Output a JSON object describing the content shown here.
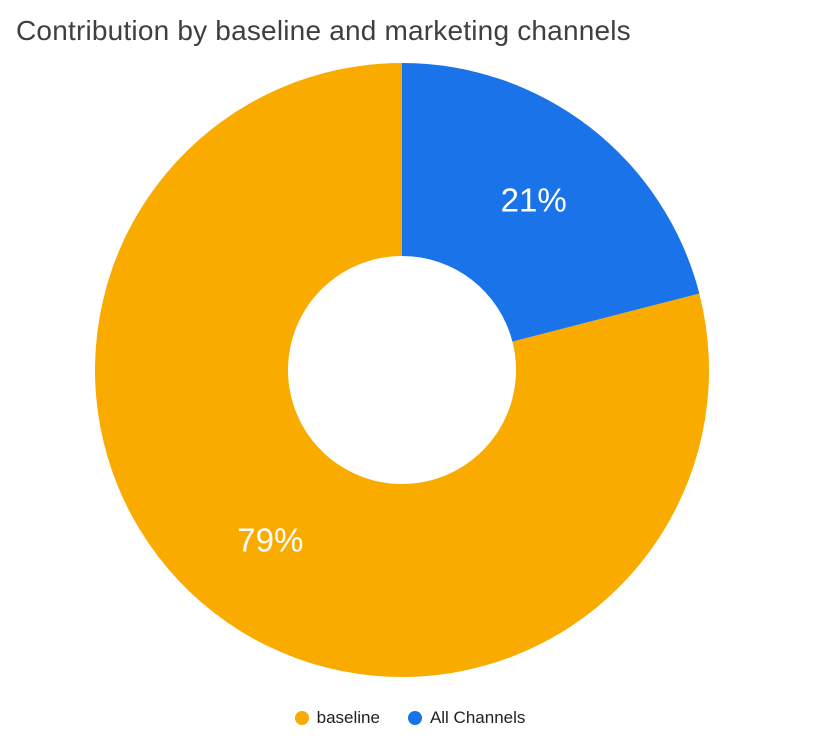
{
  "page": {
    "title": "Contribution by baseline and marketing channels"
  },
  "chart_data": {
    "type": "pie",
    "subtype": "donut",
    "title": "Contribution by baseline and marketing channels",
    "series": [
      {
        "name": "baseline",
        "value": 79,
        "percent_label": "79%",
        "color": "#F9AB00"
      },
      {
        "name": "All Channels",
        "value": 21,
        "percent_label": "21%",
        "color": "#1A73E8"
      }
    ],
    "clockwise_order": [
      1,
      0
    ],
    "start_angle_deg": -90,
    "direction": "clockwise",
    "inner_radius_ratio": 0.37,
    "label_radius_ratio": 0.7,
    "label_color": "#FFFFFF",
    "legend_position": "bottom",
    "grid": false,
    "title_color": "#3C4043"
  }
}
